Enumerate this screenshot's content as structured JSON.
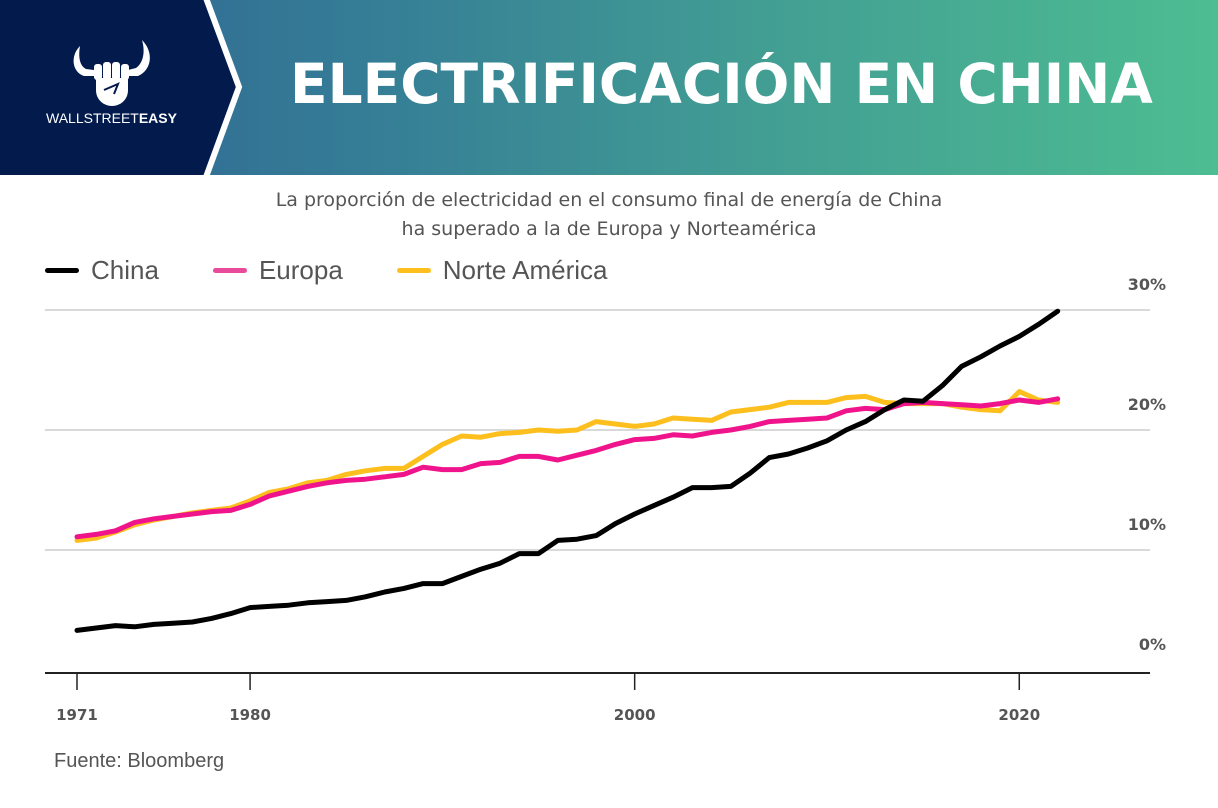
{
  "header": {
    "brand_light": "WALLSTREET",
    "brand_bold": "EASY",
    "title": "ELECTRIFICACIÓN EN CHINA",
    "logo_icon": "bull-fist-icon",
    "colors": {
      "brand_panel": "#021a4c",
      "gradient_start": "#2f6393",
      "gradient_end": "#4dbd92"
    }
  },
  "subtitle": {
    "line1": "La proporción de electricidad en el consumo final de energía de China",
    "line2": "ha superado a la de Europa y Norteamérica"
  },
  "source": "Fuente: Bloomberg",
  "chart_data": {
    "type": "line",
    "title": "La proporción de electricidad en el consumo final de energía de China ha superado a la de Europa y Norteamérica",
    "xlabel": "",
    "ylabel": "",
    "x": [
      1971,
      1972,
      1973,
      1974,
      1975,
      1976,
      1977,
      1978,
      1979,
      1980,
      1981,
      1982,
      1983,
      1984,
      1985,
      1986,
      1987,
      1988,
      1989,
      1990,
      1991,
      1992,
      1993,
      1994,
      1995,
      1996,
      1997,
      1998,
      1999,
      2000,
      2001,
      2002,
      2003,
      2004,
      2005,
      2006,
      2007,
      2008,
      2009,
      2010,
      2011,
      2012,
      2013,
      2014,
      2015,
      2016,
      2017,
      2018,
      2019,
      2020,
      2021,
      2022
    ],
    "xlim": [
      1969.5,
      2027
    ],
    "ylim": [
      0,
      30
    ],
    "x_ticks": [
      1971,
      1980,
      2000,
      2020
    ],
    "x_tick_labels": [
      "1971",
      "1980",
      "2000",
      "2020"
    ],
    "y_ticks": [
      0,
      10,
      20,
      30
    ],
    "y_tick_labels": [
      "0%",
      "10%",
      "20%",
      "30%"
    ],
    "y_axis_side": "right",
    "grid": true,
    "legend_position": "top-left",
    "series": [
      {
        "name": "Norte América",
        "color": "#fcbf1e",
        "values": [
          10.8,
          11.0,
          11.5,
          12.1,
          12.5,
          12.8,
          13.1,
          13.3,
          13.5,
          14.1,
          14.8,
          15.1,
          15.6,
          15.8,
          16.3,
          16.6,
          16.8,
          16.8,
          17.8,
          18.8,
          19.5,
          19.4,
          19.7,
          19.8,
          20.0,
          19.9,
          20.0,
          20.7,
          20.5,
          20.3,
          20.5,
          21.0,
          20.9,
          20.8,
          21.5,
          21.7,
          21.9,
          22.3,
          22.3,
          22.3,
          22.7,
          22.8,
          22.3,
          22.2,
          22.2,
          22.2,
          21.9,
          21.7,
          21.6,
          23.2,
          22.5,
          22.3
        ]
      },
      {
        "name": "Europa",
        "color": "#f0148c",
        "values": [
          11.1,
          11.3,
          11.6,
          12.3,
          12.6,
          12.8,
          13.0,
          13.2,
          13.3,
          13.8,
          14.5,
          14.9,
          15.3,
          15.6,
          15.8,
          15.9,
          16.1,
          16.3,
          16.9,
          16.7,
          16.7,
          17.2,
          17.3,
          17.8,
          17.8,
          17.5,
          17.9,
          18.3,
          18.8,
          19.2,
          19.3,
          19.6,
          19.5,
          19.8,
          20.0,
          20.3,
          20.7,
          20.8,
          20.9,
          21.0,
          21.6,
          21.8,
          21.7,
          22.2,
          22.3,
          22.2,
          22.1,
          22.0,
          22.2,
          22.5,
          22.3,
          22.6
        ]
      },
      {
        "name": "China",
        "color": "#000000",
        "values": [
          3.3,
          3.5,
          3.7,
          3.6,
          3.8,
          3.9,
          4.0,
          4.3,
          4.7,
          5.2,
          5.3,
          5.4,
          5.6,
          5.7,
          5.8,
          6.1,
          6.5,
          6.8,
          7.2,
          7.2,
          7.8,
          8.4,
          8.9,
          9.7,
          9.7,
          10.8,
          10.9,
          11.2,
          12.2,
          13.0,
          13.7,
          14.4,
          15.2,
          15.2,
          15.3,
          16.4,
          17.7,
          18.0,
          18.5,
          19.1,
          20.0,
          20.7,
          21.7,
          22.5,
          22.4,
          23.7,
          25.3,
          26.1,
          27.0,
          27.8,
          28.8,
          29.9
        ]
      }
    ],
    "legend_order": [
      "China",
      "Europa",
      "Norte América"
    ]
  }
}
